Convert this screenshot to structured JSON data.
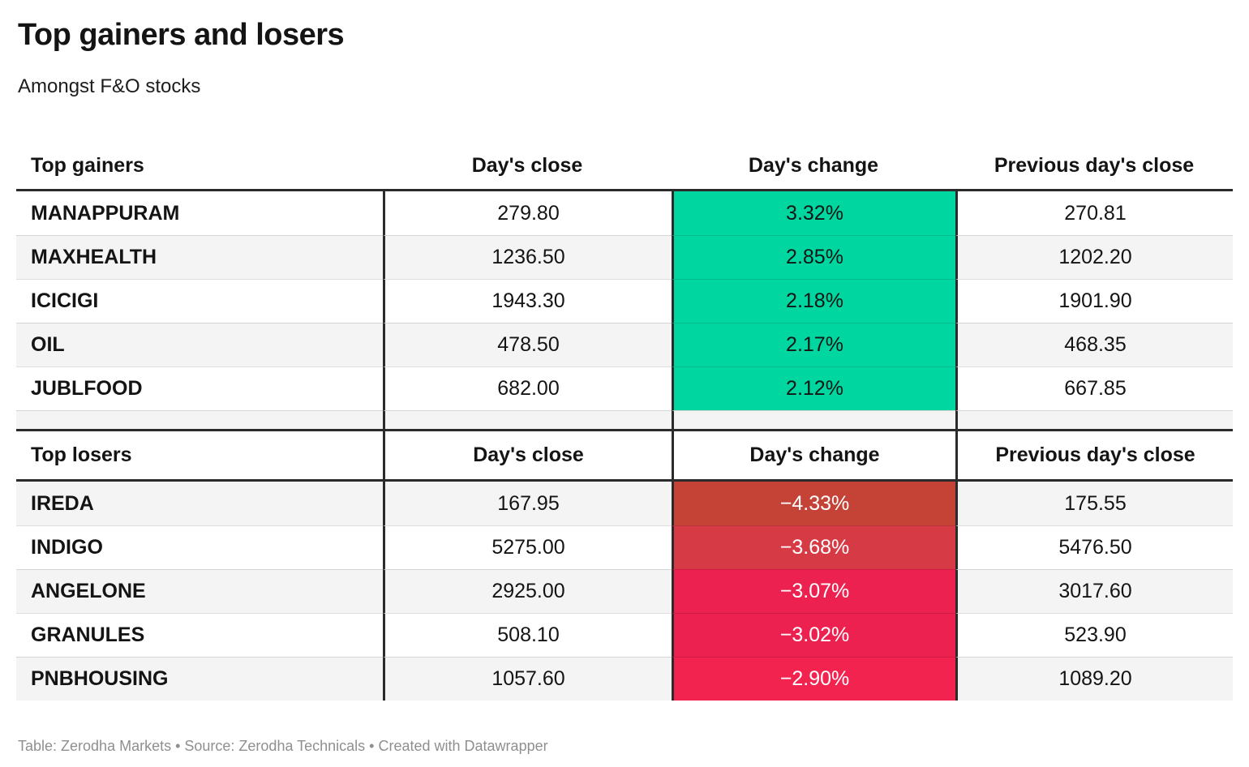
{
  "header": {
    "title": "Top gainers and losers",
    "subtitle": "Amongst F&O stocks"
  },
  "footer": {
    "text": "Table: Zerodha Markets • Source: Zerodha Technicals • Created with Datawrapper"
  },
  "colors": {
    "positive": "#00d6a0",
    "negative_strong": "#c44336",
    "negative_medium": "#d63a44",
    "negative_bright": "#ec2150",
    "table_border": "#2b2b2b",
    "row_alt": "#f4f4f4",
    "footer_text": "#8f8f8f"
  },
  "chart_data": [
    {
      "type": "table",
      "section": "Top gainers",
      "columns": [
        "Top gainers",
        "Day's close",
        "Day's change",
        "Previous day's close"
      ],
      "rows": [
        {
          "name": "MANAPPURAM",
          "close": "279.80",
          "change": "3.32%",
          "change_value": 3.32,
          "prev": "270.81",
          "change_bg": "#00d6a0"
        },
        {
          "name": "MAXHEALTH",
          "close": "1236.50",
          "change": "2.85%",
          "change_value": 2.85,
          "prev": "1202.20",
          "change_bg": "#00d6a0"
        },
        {
          "name": "ICICIGI",
          "close": "1943.30",
          "change": "2.18%",
          "change_value": 2.18,
          "prev": "1901.90",
          "change_bg": "#00d6a0"
        },
        {
          "name": "OIL",
          "close": "478.50",
          "change": "2.17%",
          "change_value": 2.17,
          "prev": "468.35",
          "change_bg": "#00d6a0"
        },
        {
          "name": "JUBLFOOD",
          "close": "682.00",
          "change": "2.12%",
          "change_value": 2.12,
          "prev": "667.85",
          "change_bg": "#00d6a0"
        }
      ]
    },
    {
      "type": "table",
      "section": "Top losers",
      "columns": [
        "Top losers",
        "Day's close",
        "Day's change",
        "Previous day's close"
      ],
      "rows": [
        {
          "name": "IREDA",
          "close": "167.95",
          "change": "−4.33%",
          "change_value": -4.33,
          "prev": "175.55",
          "change_bg": "#c44336"
        },
        {
          "name": "INDIGO",
          "close": "5275.00",
          "change": "−3.68%",
          "change_value": -3.68,
          "prev": "5476.50",
          "change_bg": "#d63a44"
        },
        {
          "name": "ANGELONE",
          "close": "2925.00",
          "change": "−3.07%",
          "change_value": -3.07,
          "prev": "3017.60",
          "change_bg": "#ed2150"
        },
        {
          "name": "GRANULES",
          "close": "508.10",
          "change": "−3.02%",
          "change_value": -3.02,
          "prev": "523.90",
          "change_bg": "#ec2150"
        },
        {
          "name": "PNBHOUSING",
          "close": "1057.60",
          "change": "−2.90%",
          "change_value": -2.9,
          "prev": "1089.20",
          "change_bg": "#f3234f"
        }
      ]
    }
  ]
}
